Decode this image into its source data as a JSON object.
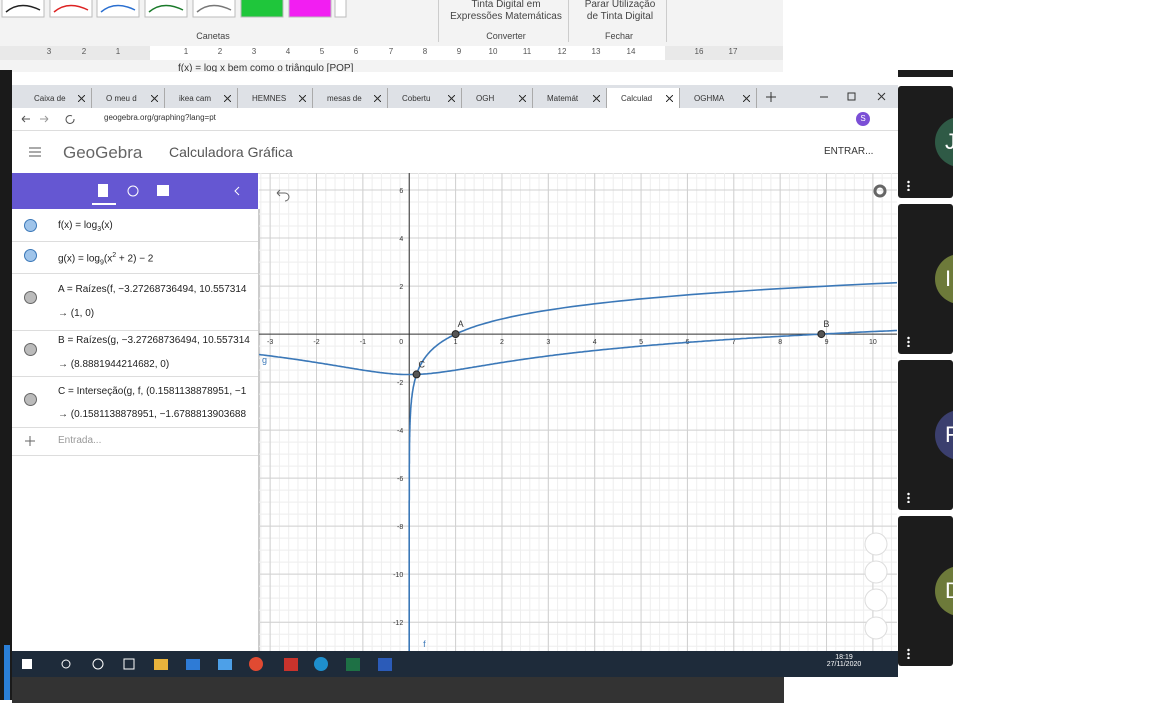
{
  "word": {
    "convert_button": [
      "Tinta Digital em",
      "Expressões Matemáticas"
    ],
    "stop_button": [
      "Parar Utilização",
      "de Tinta Digital"
    ],
    "groups": [
      "Canetas",
      "Converter",
      "Fechar"
    ],
    "ruler": [
      "3",
      "2",
      "1",
      "1",
      "2",
      "3",
      "4",
      "5",
      "6",
      "7",
      "8",
      "9",
      "10",
      "11",
      "12",
      "13",
      "14",
      "16",
      "17"
    ],
    "doc_line": "f(x) = log  x bem como o triângulo [POP]"
  },
  "browser": {
    "tabs": [
      "Caixa de",
      "O meu d",
      "ikea cam",
      "HEMNES",
      "mesas de",
      "Cobertu",
      "OGH",
      "Matemát",
      "Calculad",
      "OGHMA"
    ],
    "url": "geogebra.org/graphing?lang=pt",
    "profile": "S"
  },
  "geogebra": {
    "logo": "GeoGebra",
    "app_title": "Calculadora Gráfica",
    "login": "ENTRAR...",
    "algebra": {
      "f": [
        "f(x) = log",
        "3",
        "(x)"
      ],
      "g": [
        "g(x) = log",
        "9",
        "(x",
        "2",
        " + 2) − 2"
      ],
      "items": [
        {
          "def": "A = Raízes(f, −3.27268736494, 10.557314",
          "result": "→ (1, 0)"
        },
        {
          "def": "B = Raízes(g, −3.27268736494, 10.557314",
          "result": "→ (8.8881944214682, 0)"
        },
        {
          "def": "C = Interseção(g, f, (0.1581138878951, −1",
          "result": "→ (0.1581138878951, −1.6788813903688"
        }
      ],
      "input": "Entrada..."
    },
    "graph": {
      "xlim": [
        -3.24,
        10.52
      ],
      "ylim": [
        -13.2,
        6.71
      ],
      "xticks": [
        -3,
        -2,
        -1,
        0,
        1,
        2,
        3,
        4,
        5,
        6,
        7,
        8,
        9,
        10
      ],
      "yticks": [
        6,
        4,
        2,
        -2,
        -4,
        -6,
        -8,
        -10,
        -12
      ],
      "curve_color": "#3b78b8",
      "points": [
        {
          "label": "A",
          "x": 1,
          "y": 0
        },
        {
          "label": "B",
          "x": 8.8881944214682,
          "y": 0
        },
        {
          "label": "C",
          "x": 0.1581138878951,
          "y": -1.6788813903688
        }
      ],
      "curve_labels": [
        "f",
        "g"
      ]
    }
  },
  "taskbar": {
    "time": "18:19",
    "date": "27/11/2020"
  },
  "participants": [
    "J",
    "I",
    "F",
    "D"
  ]
}
